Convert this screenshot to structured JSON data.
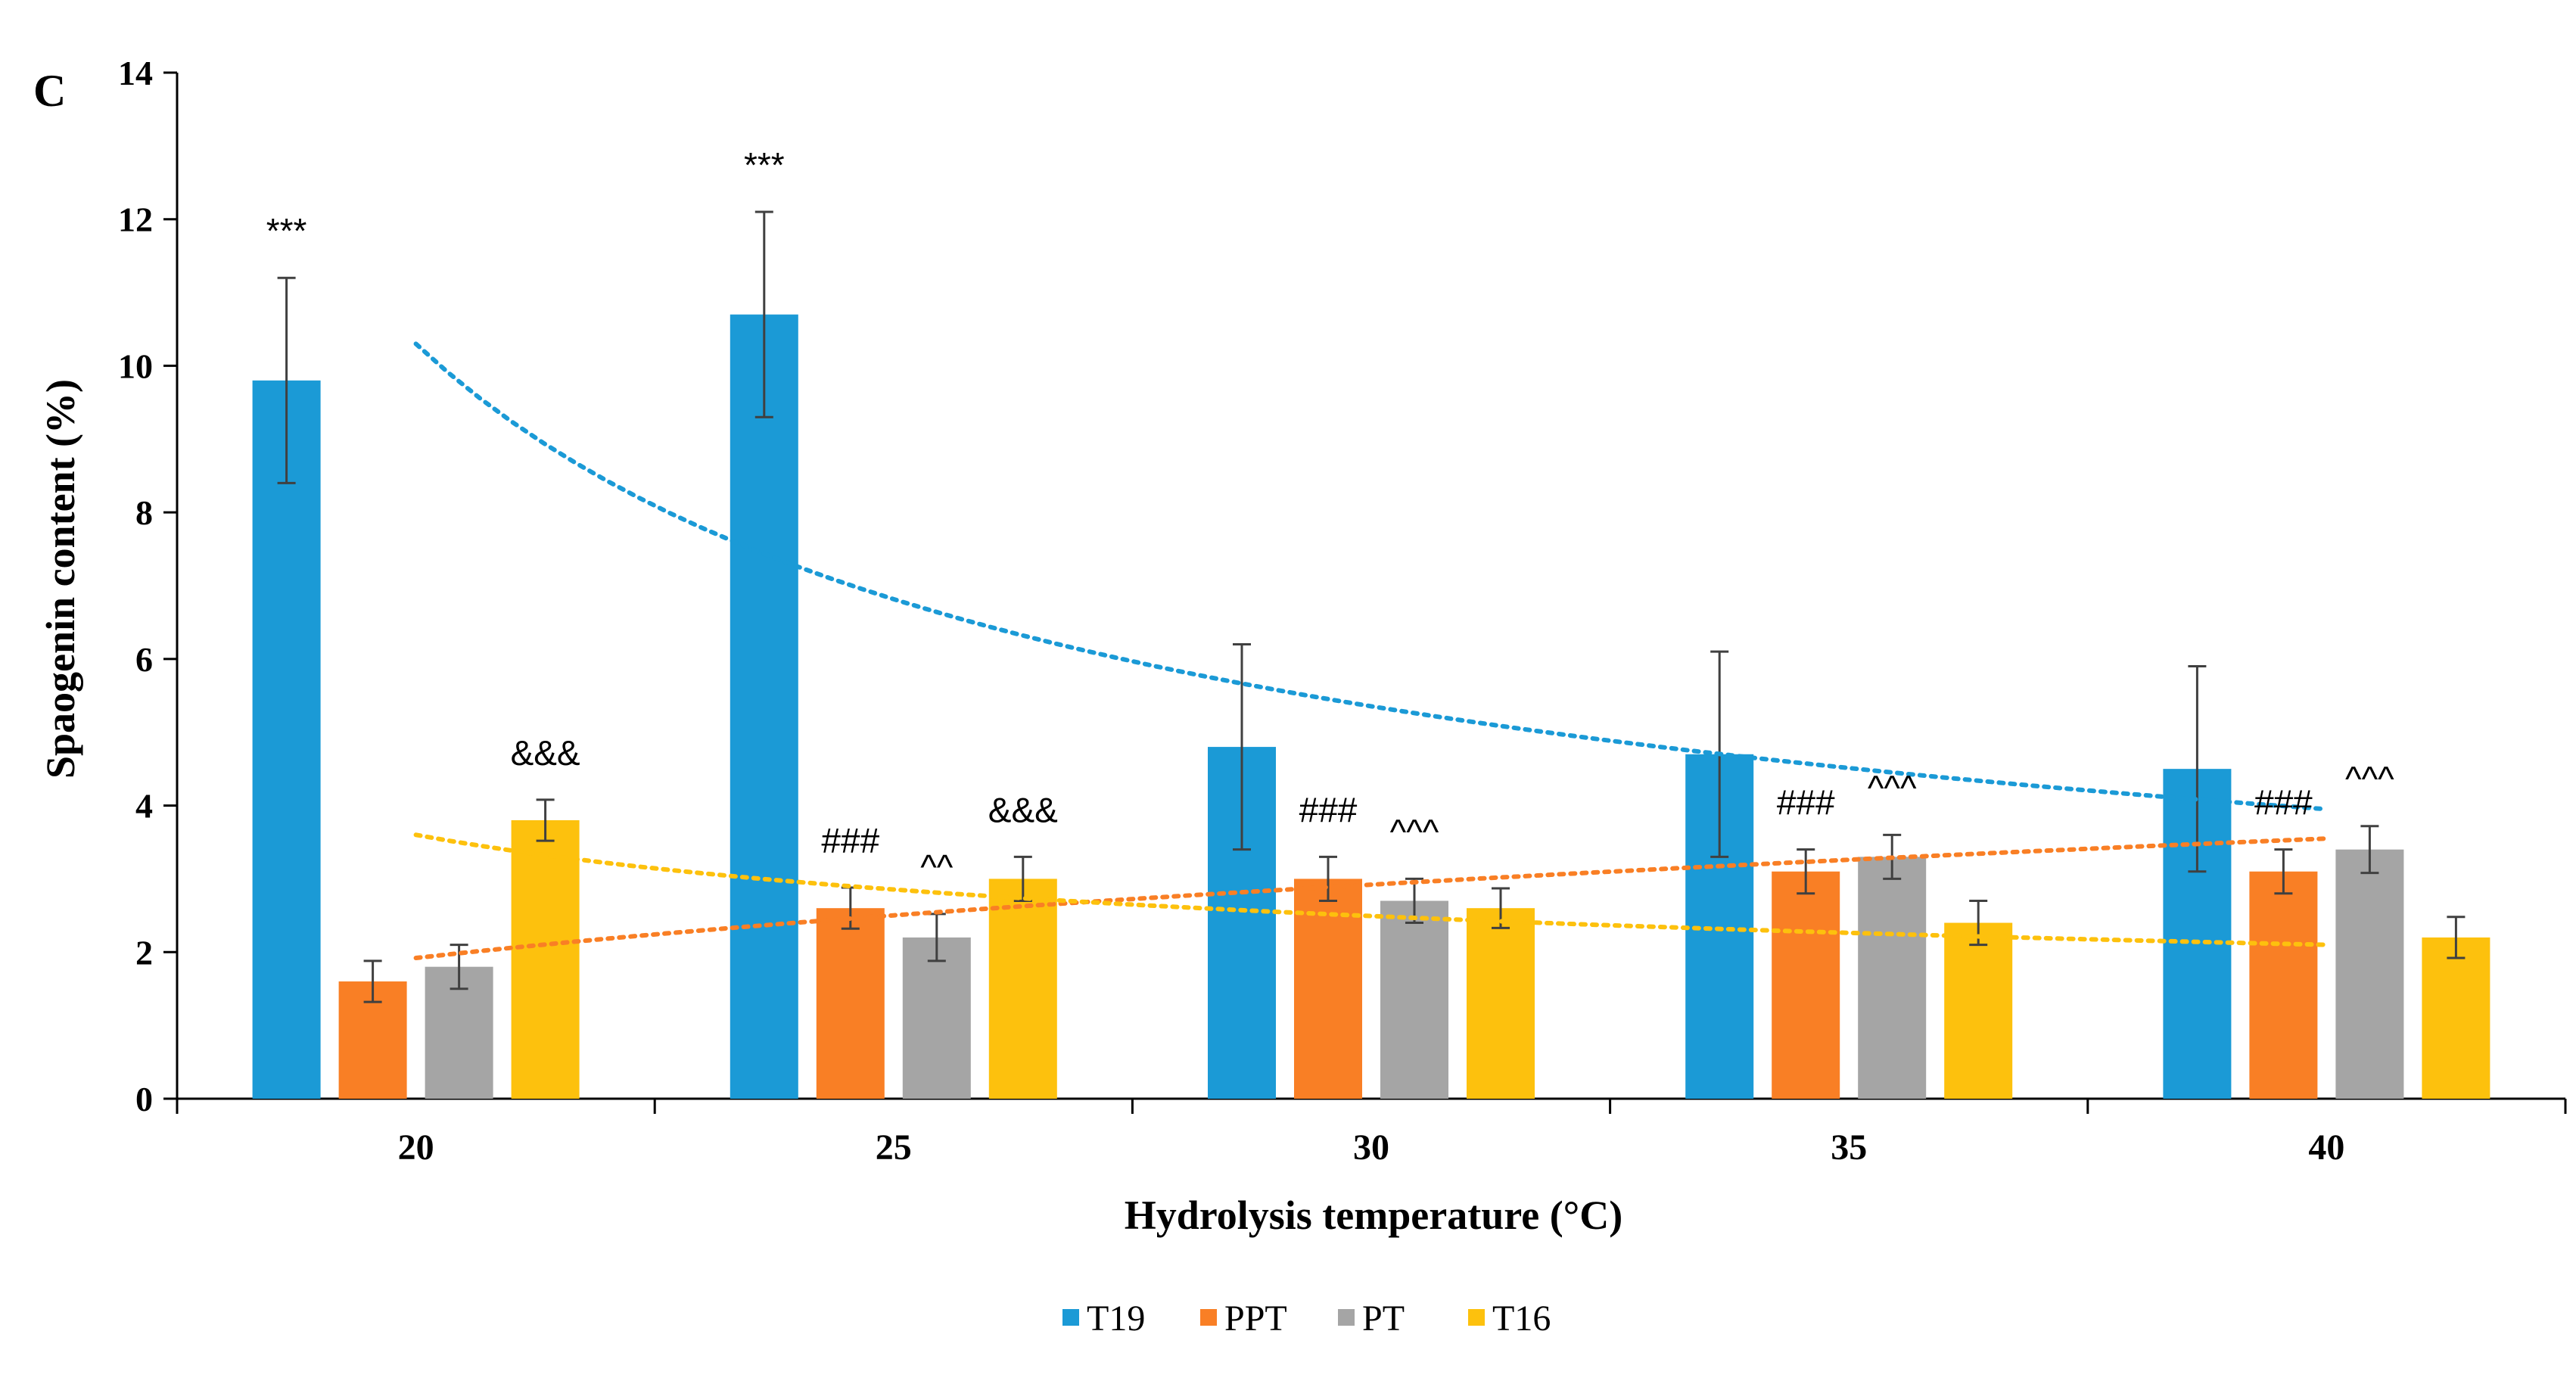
{
  "chart_data": {
    "type": "bar",
    "panel_label": "C",
    "title": "",
    "xlabel": "Hydrolysis temperature (°C)",
    "ylabel": "Spaogenin content (%)",
    "ylim": [
      0,
      14
    ],
    "yticks": [
      0,
      2,
      4,
      6,
      8,
      10,
      12,
      14
    ],
    "categories": [
      "20",
      "25",
      "30",
      "35",
      "40"
    ],
    "series": [
      {
        "name": "T19",
        "color": "#1b9ad6",
        "values": [
          9.8,
          10.7,
          4.8,
          4.7,
          4.5
        ],
        "errors": [
          1.4,
          1.4,
          1.4,
          1.4,
          1.4
        ],
        "annotations": [
          "***",
          "***",
          "",
          "",
          ""
        ]
      },
      {
        "name": "PPT",
        "color": "#f97f25",
        "values": [
          1.6,
          2.6,
          3.0,
          3.1,
          3.1
        ],
        "errors": [
          0.28,
          0.28,
          0.3,
          0.3,
          0.3
        ],
        "annotations": [
          "",
          "###",
          "###",
          "###",
          "###"
        ]
      },
      {
        "name": "PT",
        "color": "#a5a5a5",
        "values": [
          1.8,
          2.2,
          2.7,
          3.3,
          3.4
        ],
        "errors": [
          0.3,
          0.32,
          0.3,
          0.3,
          0.32
        ],
        "annotations": [
          "",
          "^^",
          "^^^",
          "^^^",
          "^^^"
        ]
      },
      {
        "name": "T16",
        "color": "#fdc10d",
        "values": [
          3.8,
          3.0,
          2.6,
          2.4,
          2.2
        ],
        "errors": [
          0.28,
          0.3,
          0.27,
          0.3,
          0.28
        ],
        "annotations": [
          "&&&",
          "&&&",
          "",
          "",
          ""
        ]
      }
    ],
    "trendlines": [
      {
        "series": "T19",
        "color": "#1b9ad6",
        "type": "power",
        "start": 10.3,
        "end": 3.95
      },
      {
        "series": "PPT",
        "color": "#f97f25",
        "type": "power",
        "start": 1.92,
        "end": 3.55
      },
      {
        "series": "T16",
        "color": "#fdc10d",
        "type": "power",
        "start": 3.6,
        "end": 2.1
      }
    ],
    "legend": {
      "position": "bottom",
      "entries": [
        "T19",
        "PPT",
        "PT",
        "T16"
      ]
    }
  }
}
